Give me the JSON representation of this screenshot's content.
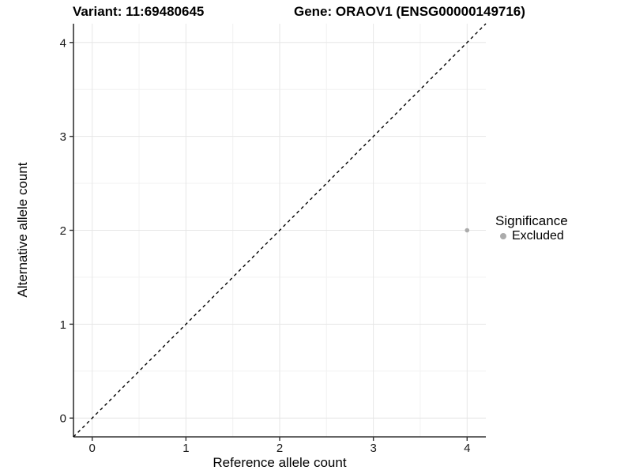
{
  "figure": {
    "background": "#ffffff"
  },
  "chart_data": {
    "type": "scatter",
    "title_left": "Variant: 11:69480645",
    "title_right": "Gene: ORAOV1 (ENSG00000149716)",
    "xlabel": "Reference allele count",
    "ylabel": "Alternative allele count",
    "xlim": [
      -0.2,
      4.2
    ],
    "ylim": [
      -0.2,
      4.2
    ],
    "x_ticks": [
      0,
      1,
      2,
      3,
      4
    ],
    "y_ticks": [
      0,
      1,
      2,
      3,
      4
    ],
    "x_minor_ticks": [
      0.5,
      1.5,
      2.5,
      3.5
    ],
    "y_minor_ticks": [
      0.5,
      1.5,
      2.5,
      3.5
    ],
    "grid": "major and minor gridlines on, no panel border",
    "identity_line": {
      "style": "dashed",
      "color": "#000000",
      "from": [
        -0.2,
        -0.2
      ],
      "to": [
        4.2,
        4.2
      ]
    },
    "series": [
      {
        "name": "Excluded",
        "marker": "circle",
        "color": "#ababab",
        "points": [
          {
            "x": 4,
            "y": 2
          }
        ]
      }
    ],
    "legend": {
      "title": "Significance",
      "position": "right",
      "items": [
        {
          "label": "Excluded",
          "color": "#ababab",
          "marker": "circle"
        }
      ]
    },
    "colors": {
      "grid_major": "#e6e6e6",
      "grid_minor": "#f2f2f2",
      "axis_line": "#333333",
      "tick_mark": "#333333",
      "tick_label": "#1a1a1a",
      "text": "#000000",
      "point": "#ababab",
      "identity_line": "#000000",
      "background": "#ffffff"
    }
  }
}
